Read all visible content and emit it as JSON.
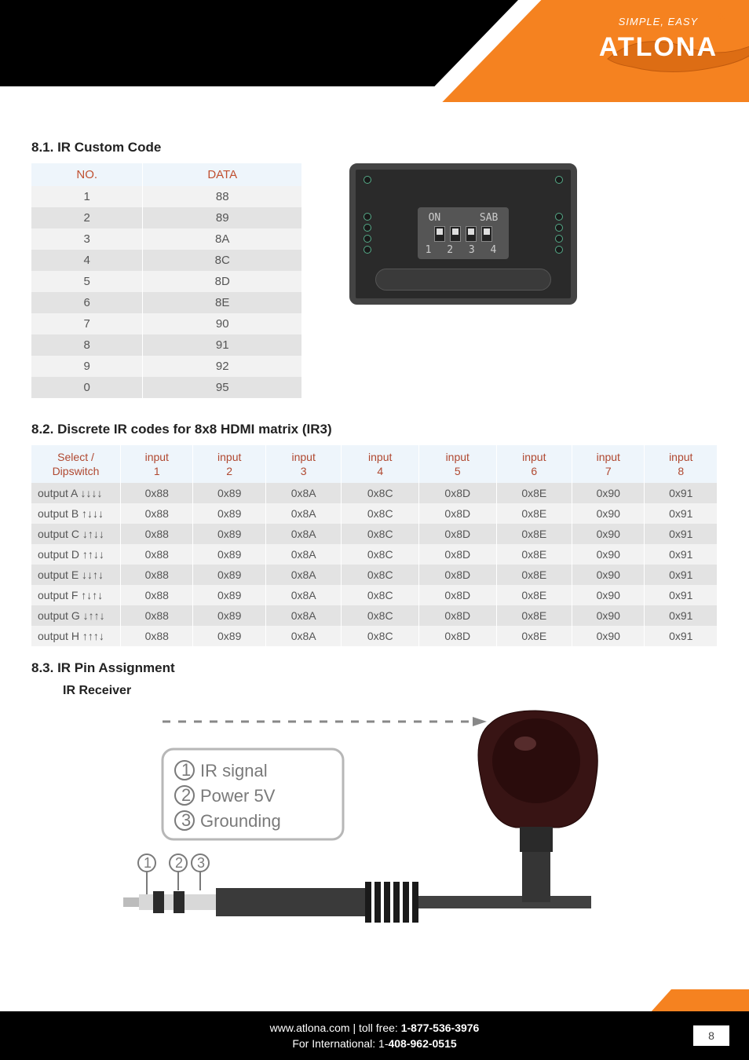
{
  "header": {
    "tagline": "SIMPLE, EASY",
    "brand": "ATLONA",
    "regmark": "®"
  },
  "section81": {
    "title": "8.1. IR Custom Code",
    "columns": [
      "NO.",
      "DATA"
    ],
    "rows": [
      {
        "no": "1",
        "data": "88"
      },
      {
        "no": "2",
        "data": "89"
      },
      {
        "no": "3",
        "data": "8A"
      },
      {
        "no": "4",
        "data": "8C"
      },
      {
        "no": "5",
        "data": "8D"
      },
      {
        "no": "6",
        "data": "8E"
      },
      {
        "no": "7",
        "data": "90"
      },
      {
        "no": "8",
        "data": "91"
      },
      {
        "no": "9",
        "data": "92"
      },
      {
        "no": "0",
        "data": "95"
      }
    ],
    "dipswitch": {
      "top_label_left": "ON",
      "top_label_right": "SAB",
      "numbers": "1 2 3 4"
    }
  },
  "section82": {
    "title": "8.2. Discrete IR codes for 8x8 HDMI matrix (IR3)",
    "header_first": "Select / Dipswitch",
    "inputs": [
      "input\n1",
      "input\n2",
      "input\n3",
      "input\n4",
      "input\n5",
      "input\n6",
      "input\n7",
      "input\n8"
    ],
    "rows": [
      {
        "label": "output A ↓↓↓↓",
        "cells": [
          "0x88",
          "0x89",
          "0x8A",
          "0x8C",
          "0x8D",
          "0x8E",
          "0x90",
          "0x91"
        ]
      },
      {
        "label": "output B ↑↓↓↓",
        "cells": [
          "0x88",
          "0x89",
          "0x8A",
          "0x8C",
          "0x8D",
          "0x8E",
          "0x90",
          "0x91"
        ]
      },
      {
        "label": "output C ↓↑↓↓",
        "cells": [
          "0x88",
          "0x89",
          "0x8A",
          "0x8C",
          "0x8D",
          "0x8E",
          "0x90",
          "0x91"
        ]
      },
      {
        "label": "output D ↑↑↓↓",
        "cells": [
          "0x88",
          "0x89",
          "0x8A",
          "0x8C",
          "0x8D",
          "0x8E",
          "0x90",
          "0x91"
        ]
      },
      {
        "label": "output E ↓↓↑↓",
        "cells": [
          "0x88",
          "0x89",
          "0x8A",
          "0x8C",
          "0x8D",
          "0x8E",
          "0x90",
          "0x91"
        ]
      },
      {
        "label": "output F ↑↓↑↓",
        "cells": [
          "0x88",
          "0x89",
          "0x8A",
          "0x8C",
          "0x8D",
          "0x8E",
          "0x90",
          "0x91"
        ]
      },
      {
        "label": "output G ↓↑↑↓",
        "cells": [
          "0x88",
          "0x89",
          "0x8A",
          "0x8C",
          "0x8D",
          "0x8E",
          "0x90",
          "0x91"
        ]
      },
      {
        "label": "output H ↑↑↑↓",
        "cells": [
          "0x88",
          "0x89",
          "0x8A",
          "0x8C",
          "0x8D",
          "0x8E",
          "0x90",
          "0x91"
        ]
      }
    ]
  },
  "section83": {
    "title": "8.3. IR Pin Assignment",
    "subtitle": "IR Receiver",
    "legend": [
      "IR signal",
      "Power 5V",
      "Grounding"
    ],
    "pin_nums": [
      "1",
      "2",
      "3"
    ]
  },
  "footer": {
    "line1_pre": "www.atlona.com | toll free: ",
    "line1_bold": "1-877-536-3976",
    "line2_pre": "For International: 1-",
    "line2_bold": "408-962-0515",
    "page": "8"
  },
  "colors": {
    "orange": "#f58220",
    "header_bg": "#eef5fb",
    "header_text": "#b04830",
    "row_light": "#f2f2f2",
    "row_dark": "#e3e3e3"
  }
}
